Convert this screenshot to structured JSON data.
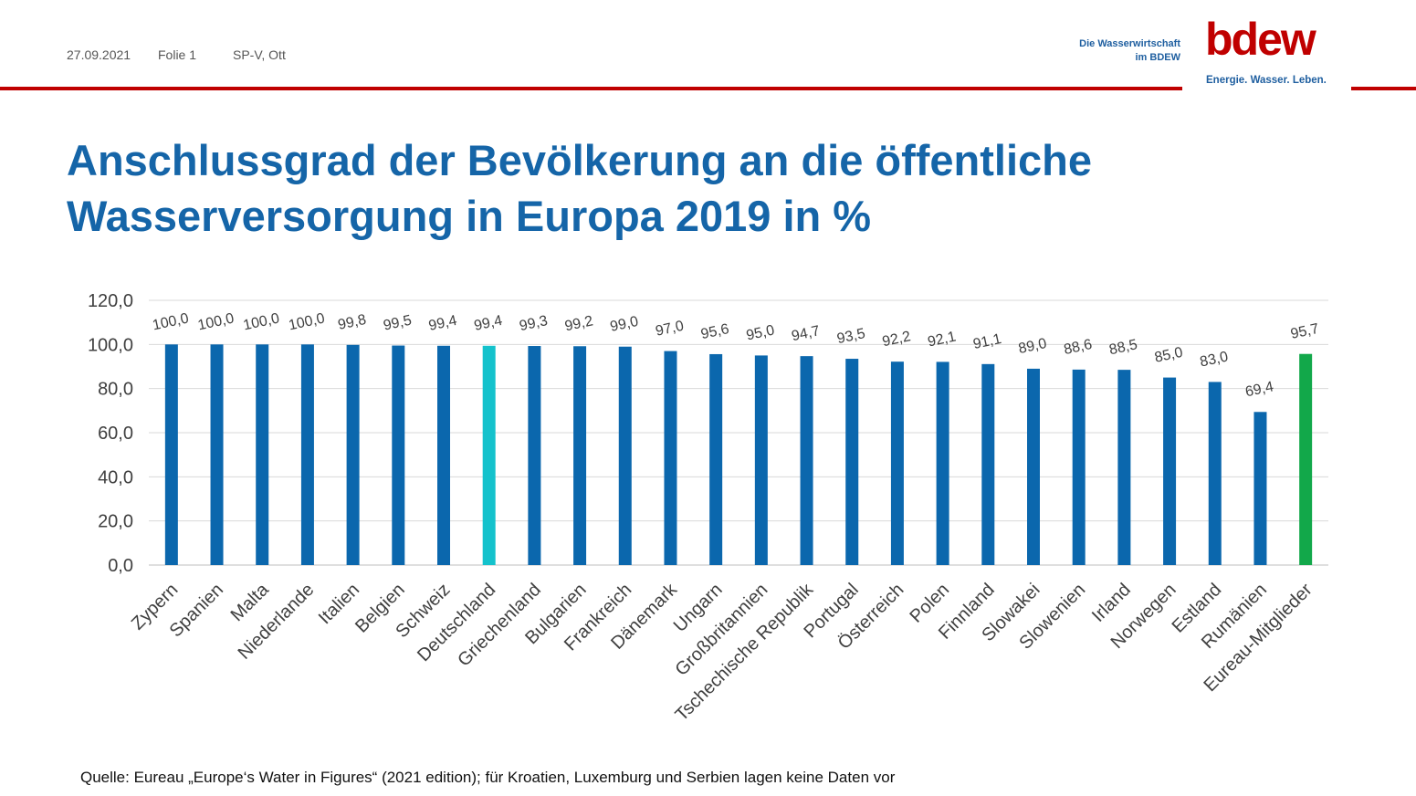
{
  "header": {
    "date": "27.09.2021",
    "folie": "Folie 1",
    "author": "SP-V, Ott",
    "org_line1": "Die Wasserwirtschaft",
    "org_line2": "im BDEW",
    "logo_text": "bdew",
    "logo_tagline": "Energie. Wasser. Leben."
  },
  "title_line1": "Anschlussgrad der Bevölkerung an die öffentliche",
  "title_line2": "Wasserversorgung in Europa 2019 in %",
  "source": "Quelle: Eureau „Europe‘s Water in Figures“ (2021 edition); für Kroatien, Luxemburg und Serbien lagen keine Daten vor",
  "colors": {
    "bar": "#0b67ad",
    "highlight_deutschland": "#14c2cc",
    "highlight_eureau": "#12a84a",
    "title": "#1565a8",
    "accent_red": "#c00000"
  },
  "chart_data": {
    "type": "bar",
    "categories": [
      "Zypern",
      "Spanien",
      "Malta",
      "Niederlande",
      "Italien",
      "Belgien",
      "Schweiz",
      "Deutschland",
      "Griechenland",
      "Bulgarien",
      "Frankreich",
      "Dänemark",
      "Ungarn",
      "Großbritannien",
      "Tschechische Republik",
      "Portugal",
      "Österreich",
      "Polen",
      "Finnland",
      "Slowakei",
      "Slowenien",
      "Irland",
      "Norwegen",
      "Estland",
      "Rumänien",
      "Eureau-Mitglieder"
    ],
    "values": [
      100.0,
      100.0,
      100.0,
      100.0,
      99.8,
      99.5,
      99.4,
      99.4,
      99.3,
      99.2,
      99.0,
      97.0,
      95.6,
      95.0,
      94.7,
      93.5,
      92.2,
      92.1,
      91.1,
      89.0,
      88.6,
      88.5,
      85.0,
      83.0,
      69.4,
      95.7
    ],
    "value_labels": [
      "100,0",
      "100,0",
      "100,0",
      "100,0",
      "99,8",
      "99,5",
      "99,4",
      "99,4",
      "99,3",
      "99,2",
      "99,0",
      "97,0",
      "95,6",
      "95,0",
      "94,7",
      "93,5",
      "92,2",
      "92,1",
      "91,1",
      "89,0",
      "88,6",
      "88,5",
      "85,0",
      "83,0",
      "69,4",
      "95,7"
    ],
    "yticks": [
      0,
      20,
      40,
      60,
      80,
      100,
      120
    ],
    "ytick_labels": [
      "0,0",
      "20,0",
      "40,0",
      "60,0",
      "80,0",
      "100,0",
      "120,0"
    ],
    "ylim": [
      0,
      120
    ],
    "grid": true,
    "legend": "none",
    "highlight": {
      "Deutschland": "highlight_deutschland",
      "Eureau-Mitglieder": "highlight_eureau"
    }
  }
}
